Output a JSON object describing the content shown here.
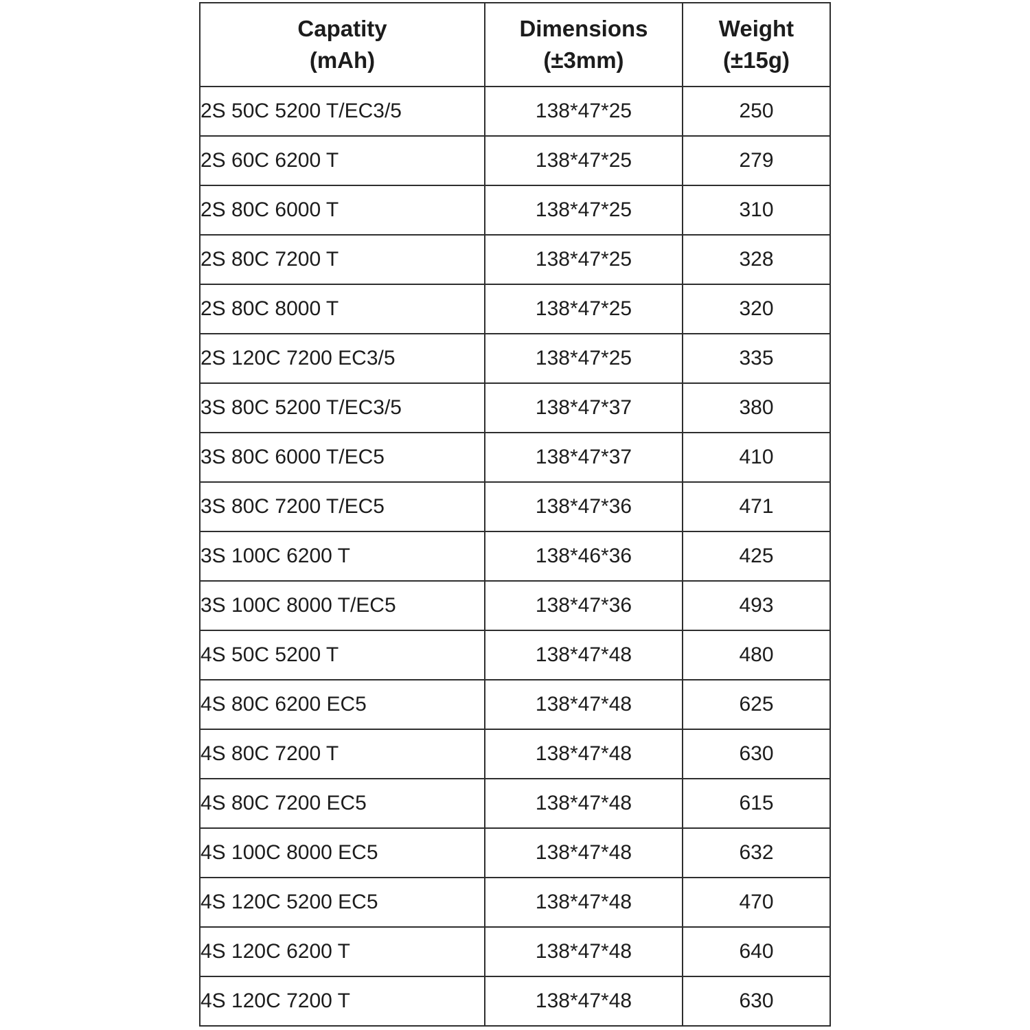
{
  "table": {
    "headers": [
      {
        "title": "Capatity",
        "unit": "(mAh)"
      },
      {
        "title": "Dimensions",
        "unit": "(±3mm)"
      },
      {
        "title": "Weight",
        "unit": "(±15g)"
      }
    ],
    "rows": [
      {
        "capacity": "2S 50C 5200 T/EC3/5",
        "dimensions": "138*47*25",
        "weight": "250"
      },
      {
        "capacity": "2S 60C 6200 T",
        "dimensions": "138*47*25",
        "weight": "279"
      },
      {
        "capacity": "2S 80C 6000 T",
        "dimensions": "138*47*25",
        "weight": "310"
      },
      {
        "capacity": "2S 80C 7200 T",
        "dimensions": "138*47*25",
        "weight": "328"
      },
      {
        "capacity": "2S 80C 8000 T",
        "dimensions": "138*47*25",
        "weight": "320"
      },
      {
        "capacity": "2S 120C 7200 EC3/5",
        "dimensions": "138*47*25",
        "weight": "335"
      },
      {
        "capacity": "3S 80C 5200 T/EC3/5",
        "dimensions": "138*47*37",
        "weight": "380"
      },
      {
        "capacity": "3S 80C 6000 T/EC5",
        "dimensions": "138*47*37",
        "weight": "410"
      },
      {
        "capacity": "3S 80C 7200 T/EC5",
        "dimensions": "138*47*36",
        "weight": "471"
      },
      {
        "capacity": "3S 100C 6200 T",
        "dimensions": "138*46*36",
        "weight": "425"
      },
      {
        "capacity": "3S 100C 8000 T/EC5",
        "dimensions": "138*47*36",
        "weight": "493"
      },
      {
        "capacity": "4S 50C 5200 T",
        "dimensions": "138*47*48",
        "weight": "480"
      },
      {
        "capacity": "4S 80C 6200 EC5",
        "dimensions": "138*47*48",
        "weight": "625"
      },
      {
        "capacity": "4S 80C 7200 T",
        "dimensions": "138*47*48",
        "weight": "630"
      },
      {
        "capacity": "4S 80C 7200 EC5",
        "dimensions": "138*47*48",
        "weight": "615"
      },
      {
        "capacity": "4S 100C 8000 EC5",
        "dimensions": "138*47*48",
        "weight": "632"
      },
      {
        "capacity": "4S 120C 5200 EC5",
        "dimensions": "138*47*48",
        "weight": "470"
      },
      {
        "capacity": "4S 120C 6200 T",
        "dimensions": "138*47*48",
        "weight": "640"
      },
      {
        "capacity": "4S 120C 7200 T",
        "dimensions": "138*47*48",
        "weight": "630"
      }
    ]
  },
  "colors": {
    "border": "#2e2e2e",
    "text": "#1c1c1c",
    "background": "#ffffff"
  }
}
